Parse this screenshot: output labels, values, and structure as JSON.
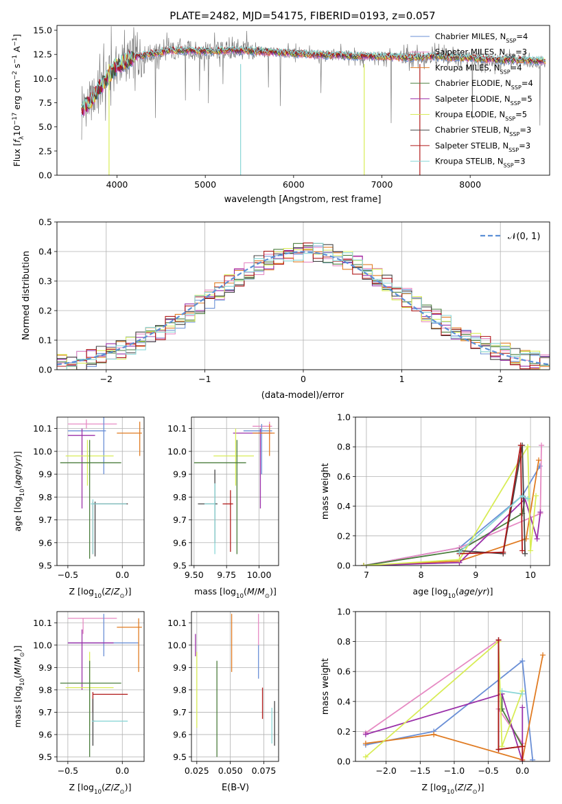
{
  "colors": {
    "chabrier_miles": "#6a8fd6",
    "salpeter_miles": "#e68ac3",
    "kroupa_miles": "#e07b22",
    "chabrier_elodie": "#4a7d3c",
    "salpeter_elodie": "#9a2fa8",
    "kroupa_elodie": "#d8ec55",
    "chabrier_stelib": "#444444",
    "salpeter_stelib": "#b01818",
    "kroupa_stelib": "#8ad6d6",
    "gray_data": "#7a7a7a",
    "normal_curve": "#5b8fd6"
  },
  "chart_data": [
    {
      "type": "line",
      "title": "PLATE=2482, MJD=54175, FIBERID=0193, z=0.057",
      "xlabel": "wavelength [Angstrom, rest frame]",
      "ylabel": "Flux [f_λ 10^-17 erg cm^-2 s^-1 A^-1]",
      "xlim": [
        3320,
        8900
      ],
      "ylim": [
        0,
        15.5
      ],
      "xticks": [
        "4000",
        "5000",
        "6000",
        "7000",
        "8000"
      ],
      "yticks": [
        "0.0",
        "2.5",
        "5.0",
        "7.5",
        "10.0",
        "12.5",
        "15.0"
      ],
      "grid": false,
      "legend_position": "right",
      "continuum": {
        "x": [
          3600,
          3700,
          3800,
          3900,
          4000,
          4200,
          4400,
          4600,
          4800,
          5000,
          5200,
          5400,
          5600,
          5800,
          6000,
          6200,
          6400,
          6600,
          6800,
          7000,
          7200,
          7400,
          7600,
          7800,
          8000,
          8200,
          8400,
          8600,
          8800
        ],
        "y": [
          6.8,
          7.6,
          9.0,
          10.2,
          11.3,
          12.2,
          12.6,
          12.9,
          12.9,
          12.8,
          12.9,
          12.9,
          12.8,
          12.7,
          12.6,
          12.5,
          12.4,
          12.4,
          12.3,
          12.3,
          12.2,
          12.2,
          12.3,
          12.2,
          12.1,
          12.0,
          11.9,
          11.9,
          11.8
        ]
      },
      "series": [
        {
          "name": "Chabrier MILES, N_SSP=4",
          "label_main": "Chabrier MILES, N",
          "label_sub": "SSP",
          "label_tail": "=4",
          "color": "#6a8fd6"
        },
        {
          "name": "Salpeter MILES, N_SSP=3",
          "label_main": "Salpeter MILES, N",
          "label_sub": "SSP",
          "label_tail": "=3",
          "color": "#e68ac3"
        },
        {
          "name": "Kroupa MILES, N_SSP=4",
          "label_main": "Kroupa MILES, N",
          "label_sub": "SSP",
          "label_tail": "=4",
          "color": "#e07b22"
        },
        {
          "name": "Chabrier ELODIE, N_SSP=4",
          "label_main": "Chabrier ELODIE, N",
          "label_sub": "SSP",
          "label_tail": "=4",
          "color": "#4a7d3c"
        },
        {
          "name": "Salpeter ELODIE, N_SSP=5",
          "label_main": "Salpeter ELODIE, N",
          "label_sub": "SSP",
          "label_tail": "=5",
          "color": "#9a2fa8"
        },
        {
          "name": "Kroupa ELODIE, N_SSP=5",
          "label_main": "Kroupa ELODIE, N",
          "label_sub": "SSP",
          "label_tail": "=5",
          "color": "#d8ec55"
        },
        {
          "name": "Chabrier STELIB, N_SSP=3",
          "label_main": "Chabrier STELIB, N",
          "label_sub": "SSP",
          "label_tail": "=3",
          "color": "#444444"
        },
        {
          "name": "Salpeter STELIB, N_SSP=3",
          "label_main": "Salpeter STELIB, N",
          "label_sub": "SSP",
          "label_tail": "=3",
          "color": "#b01818"
        },
        {
          "name": "Kroupa STELIB, N_SSP=3",
          "label_main": "Kroupa STELIB, N",
          "label_sub": "SSP",
          "label_tail": "=3",
          "color": "#8ad6d6"
        }
      ],
      "drop_lines": [
        {
          "x": 3910,
          "color": "#d8ec55"
        },
        {
          "x": 5400,
          "color": "#8ad6d6"
        },
        {
          "x": 6800,
          "color": "#d8ec55"
        },
        {
          "x": 7430,
          "color": "#b01818"
        }
      ]
    },
    {
      "type": "line",
      "xlabel": "(data-model)/error",
      "ylabel": "Normed distribution",
      "xlim": [
        -2.5,
        2.5
      ],
      "ylim": [
        0,
        0.5
      ],
      "xticks": [
        "−2",
        "−1",
        "0",
        "1",
        "2"
      ],
      "yticks": [
        "0.0",
        "0.1",
        "0.2",
        "0.3",
        "0.4",
        "0.5"
      ],
      "grid": true,
      "legend_position": "top-right",
      "normal_label": "𝒩(0, 1)",
      "bins": [
        -2.5,
        -2.4,
        -2.3,
        -2.2,
        -2.1,
        -2.0,
        -1.9,
        -1.8,
        -1.7,
        -1.6,
        -1.5,
        -1.4,
        -1.3,
        -1.2,
        -1.1,
        -1.0,
        -0.9,
        -0.8,
        -0.7,
        -0.6,
        -0.5,
        -0.4,
        -0.3,
        -0.2,
        -0.1,
        0.0,
        0.1,
        0.2,
        0.3,
        0.4,
        0.5,
        0.6,
        0.7,
        0.8,
        0.9,
        1.0,
        1.1,
        1.2,
        1.3,
        1.4,
        1.5,
        1.6,
        1.7,
        1.8,
        1.9,
        2.0,
        2.1,
        2.2,
        2.3,
        2.4,
        2.5
      ],
      "base_values": [
        0.018,
        0.022,
        0.028,
        0.035,
        0.045,
        0.055,
        0.066,
        0.079,
        0.094,
        0.11,
        0.13,
        0.15,
        0.171,
        0.194,
        0.217,
        0.242,
        0.266,
        0.29,
        0.312,
        0.333,
        0.352,
        0.368,
        0.381,
        0.391,
        0.397,
        0.399,
        0.397,
        0.391,
        0.381,
        0.368,
        0.352,
        0.333,
        0.312,
        0.29,
        0.266,
        0.242,
        0.217,
        0.194,
        0.171,
        0.15,
        0.13,
        0.11,
        0.094,
        0.079,
        0.066,
        0.055,
        0.045,
        0.035,
        0.028,
        0.022
      ]
    },
    {
      "type": "scatter",
      "xlabel": "Z [log10(Z/Z⊙)]",
      "ylabel": "age  [log10(age/yr)]",
      "xlim": [
        -0.6,
        0.2
      ],
      "ylim": [
        9.5,
        10.15
      ],
      "xticks": [
        "−0.5",
        "0.0"
      ],
      "yticks": [
        "9.5",
        "9.6",
        "9.7",
        "9.8",
        "9.9",
        "10.0",
        "10.1"
      ],
      "points": [
        {
          "color": "#e68ac3",
          "x": -0.33,
          "y": 10.12,
          "x0": -0.5,
          "x1": -0.05,
          "y0": 10.1,
          "y1": 10.14
        },
        {
          "color": "#6a8fd6",
          "x": -0.17,
          "y": 10.09,
          "x0": -0.5,
          "x1": -0.15,
          "y0": 9.9,
          "y1": 10.15
        },
        {
          "color": "#9a2fa8",
          "x": -0.37,
          "y": 10.07,
          "x0": -0.5,
          "x1": -0.25,
          "y0": 9.75,
          "y1": 10.1
        },
        {
          "color": "#e07b22",
          "x": 0.16,
          "y": 10.08,
          "x0": -0.05,
          "x1": 0.18,
          "y0": 9.98,
          "y1": 10.13
        },
        {
          "color": "#d8ec55",
          "x": -0.32,
          "y": 9.98,
          "x0": -0.52,
          "x1": -0.08,
          "y0": 9.85,
          "y1": 10.05
        },
        {
          "color": "#4a7d3c",
          "x": -0.3,
          "y": 9.95,
          "x0": -0.57,
          "x1": -0.01,
          "y0": 9.53,
          "y1": 10.05
        },
        {
          "color": "#b01818",
          "x": -0.27,
          "y": 9.77,
          "x0": -0.27,
          "x1": 0.05,
          "y0": 9.55,
          "y1": 9.78
        },
        {
          "color": "#444444",
          "x": -0.25,
          "y": 9.77,
          "x0": -0.27,
          "x1": 0.05,
          "y0": 9.54,
          "y1": 9.78
        },
        {
          "color": "#8ad6d6",
          "x": -0.27,
          "y": 9.77,
          "x0": -0.29,
          "x1": 0.04,
          "y0": 9.55,
          "y1": 9.79
        }
      ]
    },
    {
      "type": "scatter",
      "xlabel": "mass [log10(M/M⊙)]",
      "ylabel": "",
      "xlim": [
        9.48,
        10.15
      ],
      "ylim": [
        9.5,
        10.15
      ],
      "xticks": [
        "9.50",
        "9.75",
        "10.00"
      ],
      "yticks": [
        "9.5",
        "9.6",
        "9.7",
        "9.8",
        "9.9",
        "10.0",
        "10.1"
      ],
      "points": [
        {
          "color": "#e68ac3",
          "x": 10.08,
          "y": 10.11,
          "x0": 9.95,
          "x1": 10.1,
          "y0": 10.05,
          "y1": 10.13
        },
        {
          "color": "#6a8fd6",
          "x": 10.02,
          "y": 10.09,
          "x0": 9.88,
          "x1": 10.1,
          "y0": 9.9,
          "y1": 10.12
        },
        {
          "color": "#9a2fa8",
          "x": 10.01,
          "y": 10.08,
          "x0": 9.8,
          "x1": 10.1,
          "y0": 9.75,
          "y1": 10.1
        },
        {
          "color": "#e07b22",
          "x": 10.08,
          "y": 10.08,
          "x0": 9.95,
          "x1": 10.12,
          "y0": 9.98,
          "y1": 10.12
        },
        {
          "color": "#d8ec55",
          "x": 9.82,
          "y": 9.98,
          "x0": 9.65,
          "x1": 9.96,
          "y0": 9.85,
          "y1": 10.1
        },
        {
          "color": "#4a7d3c",
          "x": 9.83,
          "y": 9.95,
          "x0": 9.5,
          "x1": 9.9,
          "y0": 9.55,
          "y1": 10.05
        },
        {
          "color": "#b01818",
          "x": 9.78,
          "y": 9.77,
          "x0": 9.72,
          "x1": 9.8,
          "y0": 9.56,
          "y1": 9.83
        },
        {
          "color": "#444444",
          "x": 9.66,
          "y": 9.77,
          "x0": 9.53,
          "x1": 9.68,
          "y0": 9.6,
          "y1": 9.92
        },
        {
          "color": "#8ad6d6",
          "x": 9.66,
          "y": 9.77,
          "x0": 9.58,
          "x1": 9.66,
          "y0": 9.55,
          "y1": 9.86
        }
      ]
    },
    {
      "type": "line",
      "xlabel": "age  [log10(age/yr)]",
      "ylabel": "mass weight",
      "xlim": [
        6.8,
        10.35
      ],
      "ylim": [
        0,
        1.0
      ],
      "xticks": [
        "7",
        "8",
        "9",
        "10"
      ],
      "yticks": [
        "0.0",
        "0.2",
        "0.4",
        "0.6",
        "0.8",
        "1.0"
      ],
      "series": [
        {
          "color": "#6a8fd6",
          "x": [
            6.95,
            8.7,
            9.85,
            10.17
          ],
          "y": [
            0.0,
            0.12,
            0.47,
            0.67
          ]
        },
        {
          "color": "#e68ac3",
          "x": [
            6.95,
            8.7,
            10.18,
            10.2
          ],
          "y": [
            0.0,
            0.12,
            0.35,
            0.81
          ]
        },
        {
          "color": "#e07b22",
          "x": [
            6.95,
            8.7,
            9.92,
            10.15
          ],
          "y": [
            0.0,
            0.03,
            0.18,
            0.71
          ]
        },
        {
          "color": "#4a7d3c",
          "x": [
            6.95,
            8.7,
            9.85,
            9.9
          ],
          "y": [
            0.0,
            0.1,
            0.35,
            0.45
          ]
        },
        {
          "color": "#9a2fa8",
          "x": [
            6.95,
            8.7,
            9.9,
            10.12,
            10.18
          ],
          "y": [
            0.0,
            0.02,
            0.45,
            0.18,
            0.36
          ]
        },
        {
          "color": "#d8ec55",
          "x": [
            6.95,
            8.7,
            9.95,
            10.0,
            10.1
          ],
          "y": [
            0.0,
            0.04,
            0.8,
            0.1,
            0.47
          ]
        },
        {
          "color": "#444444",
          "x": [
            8.7,
            9.5,
            9.85,
            9.9
          ],
          "y": [
            0.1,
            0.08,
            0.81,
            0.08
          ]
        },
        {
          "color": "#b01818",
          "x": [
            8.7,
            9.5,
            9.82,
            9.85
          ],
          "y": [
            0.08,
            0.09,
            0.81,
            0.1
          ]
        },
        {
          "color": "#8ad6d6",
          "x": [
            8.7,
            9.85,
            9.95
          ],
          "y": [
            0.09,
            0.47,
            0.45
          ]
        }
      ]
    },
    {
      "type": "scatter",
      "xlabel": "Z [log10(Z/Z⊙)]",
      "ylabel": "mass [log10(M/M⊙)]",
      "xlim": [
        -0.6,
        0.2
      ],
      "ylim": [
        9.48,
        10.15
      ],
      "xticks": [
        "−0.5",
        "0.0"
      ],
      "yticks": [
        "9.5",
        "9.6",
        "9.7",
        "9.8",
        "9.9",
        "10.0",
        "10.1"
      ],
      "points": [
        {
          "color": "#e68ac3",
          "x": -0.36,
          "y": 10.12,
          "x0": -0.5,
          "x1": -0.05,
          "y0": 10.05,
          "y1": 10.12
        },
        {
          "color": "#6a8fd6",
          "x": -0.17,
          "y": 10.01,
          "x0": -0.5,
          "x1": 0.15,
          "y0": 9.95,
          "y1": 10.14
        },
        {
          "color": "#9a2fa8",
          "x": -0.37,
          "y": 10.01,
          "x0": -0.5,
          "x1": -0.08,
          "y0": 9.8,
          "y1": 10.07
        },
        {
          "color": "#e07b22",
          "x": 0.15,
          "y": 10.08,
          "x0": -0.05,
          "x1": 0.18,
          "y0": 9.88,
          "y1": 10.12
        },
        {
          "color": "#d8ec55",
          "x": -0.3,
          "y": 9.81,
          "x0": -0.52,
          "x1": -0.08,
          "y0": 9.64,
          "y1": 9.97
        },
        {
          "color": "#4a7d3c",
          "x": -0.3,
          "y": 9.83,
          "x0": -0.57,
          "x1": -0.01,
          "y0": 9.5,
          "y1": 9.93
        },
        {
          "color": "#b01818",
          "x": -0.27,
          "y": 9.78,
          "x0": -0.27,
          "x1": 0.05,
          "y0": 9.7,
          "y1": 9.79
        },
        {
          "color": "#444444",
          "x": -0.27,
          "y": 9.66,
          "x0": -0.27,
          "x1": -0.25,
          "y0": 9.55,
          "y1": 9.76
        },
        {
          "color": "#8ad6d6",
          "x": -0.28,
          "y": 9.66,
          "x0": -0.28,
          "x1": 0.05,
          "y0": 9.66,
          "y1": 9.66
        }
      ]
    },
    {
      "type": "scatter",
      "xlabel": "E(B-V)",
      "ylabel": "",
      "xlim": [
        0.021,
        0.086
      ],
      "ylim": [
        9.48,
        10.15
      ],
      "xticks": [
        "0.025",
        "0.050",
        "0.075"
      ],
      "yticks": [
        "9.5",
        "9.6",
        "9.7",
        "9.8",
        "9.9",
        "10.0",
        "10.1"
      ],
      "points": [
        {
          "color": "#9a2fa8",
          "x": 0.024,
          "y0": 9.95,
          "y1": 10.05
        },
        {
          "color": "#d8ec55",
          "x": 0.025,
          "y0": 9.63,
          "y1": 9.97
        },
        {
          "color": "#4a7d3c",
          "x": 0.04,
          "y0": 9.5,
          "y1": 9.93
        },
        {
          "color": "#e07b22",
          "x": 0.051,
          "y0": 9.88,
          "y1": 10.14
        },
        {
          "color": "#e68ac3",
          "x": 0.071,
          "y0": 10.0,
          "y1": 10.14
        },
        {
          "color": "#6a8fd6",
          "x": 0.071,
          "y0": 9.85,
          "y1": 10.0
        },
        {
          "color": "#b01818",
          "x": 0.074,
          "y0": 9.67,
          "y1": 9.81
        },
        {
          "color": "#8ad6d6",
          "x": 0.081,
          "y0": 9.56,
          "y1": 9.72
        },
        {
          "color": "#444444",
          "x": 0.083,
          "y0": 9.55,
          "y1": 9.75
        }
      ]
    },
    {
      "type": "line",
      "xlabel": "Z [log10(Z/Z⊙)]",
      "ylabel": "mass weight",
      "xlim": [
        -2.45,
        0.4
      ],
      "ylim": [
        0,
        1.0
      ],
      "xticks": [
        "−2.0",
        "−1.5",
        "−1.0",
        "−0.5",
        "0.0"
      ],
      "yticks": [
        "0.0",
        "0.2",
        "0.4",
        "0.6",
        "0.8",
        "1.0"
      ],
      "series": [
        {
          "color": "#6a8fd6",
          "x": [
            -2.3,
            -1.3,
            0.0,
            0.15
          ],
          "y": [
            0.11,
            0.2,
            0.67,
            0.01
          ]
        },
        {
          "color": "#e68ac3",
          "x": [
            -2.3,
            -0.35,
            -0.35,
            0.0
          ],
          "y": [
            0.19,
            0.81,
            0.35,
            0.12
          ]
        },
        {
          "color": "#e07b22",
          "x": [
            -2.3,
            -1.3,
            0.0,
            0.3
          ],
          "y": [
            0.12,
            0.18,
            0.01,
            0.71
          ]
        },
        {
          "color": "#4a7d3c",
          "x": [
            -0.3,
            -0.3,
            0.0
          ],
          "y": [
            0.45,
            0.35,
            0.1
          ]
        },
        {
          "color": "#9a2fa8",
          "x": [
            -2.3,
            -0.3,
            0.0,
            0.0
          ],
          "y": [
            0.18,
            0.45,
            0.0,
            0.36
          ]
        },
        {
          "color": "#d8ec55",
          "x": [
            -2.3,
            -0.35,
            -0.3,
            0.0
          ],
          "y": [
            0.03,
            0.8,
            0.1,
            0.47
          ]
        },
        {
          "color": "#444444",
          "x": [
            -0.35,
            -0.35,
            0.0
          ],
          "y": [
            0.81,
            0.08,
            0.1
          ]
        },
        {
          "color": "#b01818",
          "x": [
            -0.35,
            -0.35,
            0.0,
            0.0
          ],
          "y": [
            0.81,
            0.08,
            0.1,
            0.0
          ]
        },
        {
          "color": "#8ad6d6",
          "x": [
            -0.3,
            0.0
          ],
          "y": [
            0.47,
            0.45
          ]
        }
      ]
    }
  ]
}
